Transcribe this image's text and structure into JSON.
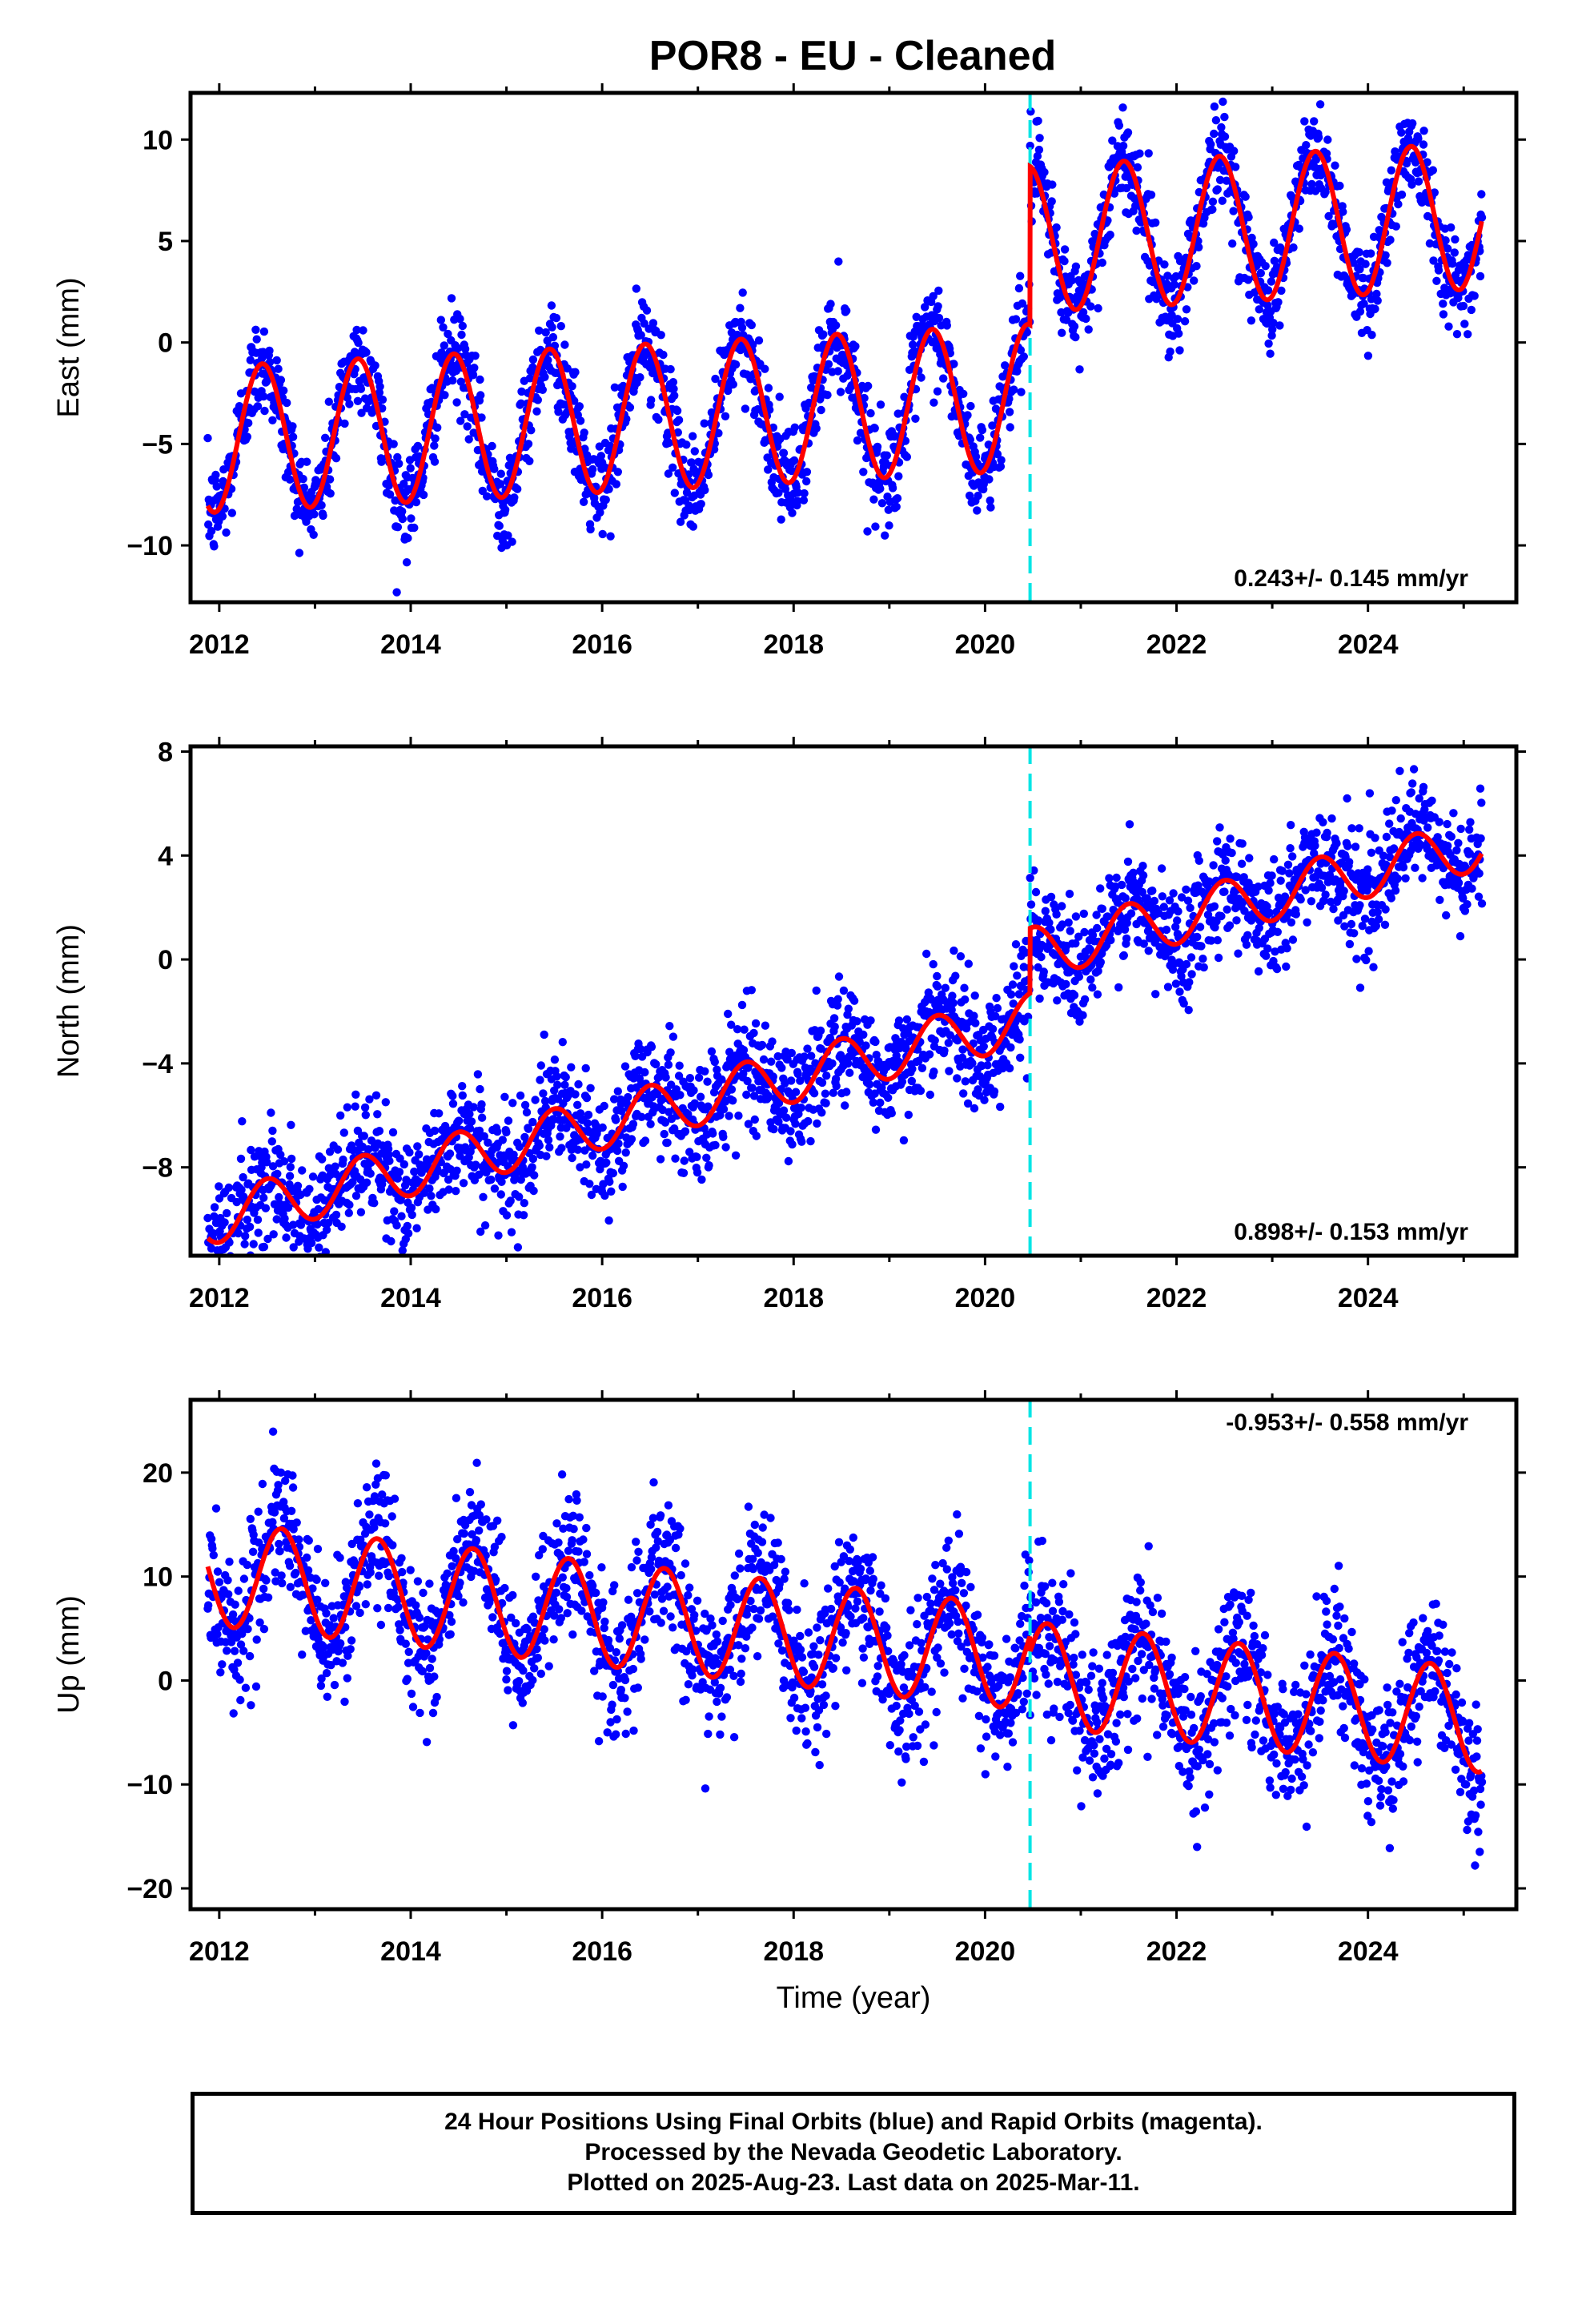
{
  "title": "POR8  - EU - Cleaned",
  "xlabel": "Time (year)",
  "footer": {
    "line1": "24 Hour Positions Using Final Orbits (blue) and Rapid Orbits (magenta).",
    "line2": "Processed by the Nevada Geodetic Laboratory.",
    "line3": "Plotted on 2025-Aug-23. Last data on 2025-Mar-11."
  },
  "colors": {
    "points": "#0000ff",
    "fit": "#ff0000",
    "step_line": "#00e5e5",
    "frame": "#000000"
  },
  "chart_data": [
    {
      "type": "scatter",
      "ylabel": "East (mm)",
      "rate_label": "0.243+/- 0.145 mm/yr",
      "xlim": [
        2011.7,
        2025.55
      ],
      "ylim": [
        -12.8,
        12.3
      ],
      "yticks": [
        -10,
        -5,
        0,
        5,
        10
      ],
      "xticks": [
        2012,
        2014,
        2016,
        2018,
        2020,
        2022,
        2024
      ],
      "step_epoch": 2020.47,
      "fit": {
        "offset_before": -3.3,
        "offset_after": 4.5,
        "amplitude": 3.6,
        "trend": 0.243,
        "peak": 0.45,
        "scatter": 1.2
      }
    },
    {
      "type": "scatter",
      "ylabel": "North (mm)",
      "rate_label": "0.898+/- 0.153 mm/yr",
      "xlim": [
        2011.7,
        2025.55
      ],
      "ylim": [
        -11.4,
        8.2
      ],
      "yticks": [
        -8,
        -4,
        0,
        4,
        8
      ],
      "xticks": [
        2012,
        2014,
        2016,
        2018,
        2020,
        2022,
        2024
      ],
      "step_epoch": 2020.47,
      "fit": {
        "offset_before": -4.5,
        "offset_after": -2.0,
        "amplitude": 1.0,
        "trend": 0.898,
        "peak": 0.5,
        "scatter": 1.1
      }
    },
    {
      "type": "scatter",
      "ylabel": "Up (mm)",
      "rate_label": "-0.953+/- 0.558 mm/yr",
      "xlim": [
        2011.7,
        2025.55
      ],
      "ylim": [
        -22,
        27
      ],
      "yticks": [
        -20,
        -10,
        0,
        10,
        20
      ],
      "xticks": [
        2012,
        2014,
        2016,
        2018,
        2020,
        2022,
        2024
      ],
      "step_epoch": 2020.47,
      "fit": {
        "offset_before": 4.5,
        "offset_after": 3.0,
        "amplitude": 5.0,
        "trend": -0.953,
        "peak": 0.65,
        "scatter": 3.3
      }
    }
  ]
}
